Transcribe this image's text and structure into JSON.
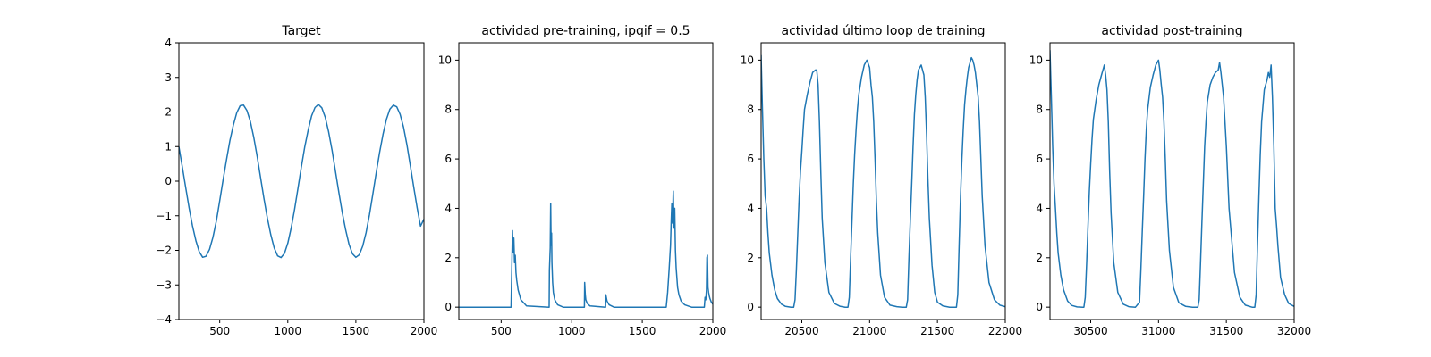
{
  "chart_data": [
    {
      "type": "line",
      "title": "Target",
      "xlabel": "",
      "ylabel": "",
      "xlim": [
        200,
        2000
      ],
      "ylim": [
        -4,
        4
      ],
      "xticks": [
        500,
        1000,
        1500,
        2000
      ],
      "yticks": [
        -4,
        -3,
        -2,
        -1,
        0,
        1,
        2,
        3,
        4
      ],
      "grid": false,
      "series": [
        {
          "color": "#1f77b4",
          "x": [
            200,
            225,
            250,
            275,
            300,
            325,
            350,
            375,
            400,
            425,
            450,
            475,
            500,
            525,
            550,
            575,
            600,
            625,
            650,
            675,
            700,
            725,
            750,
            775,
            800,
            825,
            850,
            875,
            900,
            925,
            950,
            975,
            1000,
            1025,
            1050,
            1075,
            1100,
            1125,
            1150,
            1175,
            1200,
            1225,
            1250,
            1275,
            1300,
            1325,
            1350,
            1375,
            1400,
            1425,
            1450,
            1475,
            1500,
            1525,
            1550,
            1575,
            1600,
            1625,
            1650,
            1675,
            1700,
            1725,
            1750,
            1775,
            1800,
            1825,
            1850,
            1875,
            1900,
            1925,
            1950,
            1975,
            2000
          ],
          "y": [
            1.0,
            0.42,
            -0.18,
            -0.77,
            -1.29,
            -1.72,
            -2.04,
            -2.2,
            -2.17,
            -1.97,
            -1.62,
            -1.15,
            -0.56,
            0.05,
            0.63,
            1.18,
            1.62,
            1.98,
            2.18,
            2.2,
            2.04,
            1.73,
            1.27,
            0.72,
            0.11,
            -0.5,
            -1.06,
            -1.55,
            -1.93,
            -2.16,
            -2.21,
            -2.09,
            -1.79,
            -1.35,
            -0.81,
            -0.2,
            0.42,
            1.0,
            1.48,
            1.89,
            2.13,
            2.22,
            2.12,
            1.85,
            1.43,
            0.89,
            0.28,
            -0.33,
            -0.91,
            -1.41,
            -1.83,
            -2.1,
            -2.2,
            -2.13,
            -1.88,
            -1.49,
            -0.97,
            -0.37,
            0.25,
            0.84,
            1.36,
            1.79,
            2.08,
            2.2,
            2.15,
            1.93,
            1.56,
            1.05,
            0.45,
            -0.17,
            -0.77,
            -1.3,
            -1.1
          ]
        }
      ]
    },
    {
      "type": "line",
      "title": "actividad pre-training, ipqif = 0.5",
      "xlabel": "",
      "ylabel": "",
      "xlim": [
        200,
        2000
      ],
      "ylim": [
        -0.5,
        10.7
      ],
      "xticks": [
        500,
        1000,
        1500,
        2000
      ],
      "yticks": [
        0,
        2,
        4,
        6,
        8,
        10
      ],
      "grid": false,
      "series": [
        {
          "color": "#1f77b4",
          "x": [
            200,
            570,
            575,
            580,
            585,
            590,
            595,
            600,
            605,
            610,
            620,
            640,
            680,
            840,
            842,
            845,
            848,
            851,
            854,
            857,
            860,
            865,
            870,
            880,
            900,
            940,
            1090,
            1092,
            1096,
            1100,
            1110,
            1130,
            1240,
            1242,
            1250,
            1265,
            1300,
            1670,
            1680,
            1690,
            1700,
            1705,
            1710,
            1715,
            1720,
            1725,
            1730,
            1735,
            1740,
            1745,
            1750,
            1760,
            1775,
            1800,
            1850,
            1940,
            1945,
            1950,
            1955,
            1958,
            1962,
            1966,
            1970,
            1975,
            1980,
            1990,
            2000
          ],
          "y": [
            0,
            0,
            1.5,
            3.1,
            2.2,
            2.8,
            1.8,
            2.1,
            1.4,
            1.1,
            0.7,
            0.3,
            0.05,
            0,
            1.5,
            2.0,
            2.4,
            4.2,
            2.5,
            3.0,
            1.8,
            1.0,
            0.6,
            0.3,
            0.1,
            0,
            0,
            1.0,
            0.5,
            0.3,
            0.15,
            0.05,
            0,
            0.5,
            0.25,
            0.1,
            0,
            0,
            0.6,
            1.5,
            2.5,
            3.5,
            4.2,
            3.4,
            4.7,
            3.2,
            4.0,
            2.3,
            1.6,
            1.2,
            0.8,
            0.5,
            0.25,
            0.1,
            0,
            0,
            0.4,
            0.3,
            0.7,
            2.0,
            2.1,
            0.8,
            0.6,
            0.45,
            0.35,
            0.2,
            0.12
          ]
        }
      ]
    },
    {
      "type": "line",
      "title": "actividad último loop de training",
      "xlabel": "",
      "ylabel": "",
      "xlim": [
        20200,
        22000
      ],
      "ylim": [
        -0.5,
        10.7
      ],
      "xticks": [
        20500,
        21000,
        21500,
        22000
      ],
      "yticks": [
        0,
        2,
        4,
        6,
        8,
        10
      ],
      "grid": false,
      "series": [
        {
          "color": "#1f77b4",
          "x": [
            20200,
            20210,
            20220,
            20230,
            20240,
            20250,
            20260,
            20280,
            20300,
            20320,
            20350,
            20380,
            20420,
            20440,
            20450,
            20460,
            20470,
            20480,
            20490,
            20500,
            20510,
            20520,
            20540,
            20560,
            20580,
            20600,
            20610,
            20620,
            20630,
            20640,
            20650,
            20670,
            20700,
            20740,
            20780,
            20820,
            20840,
            20850,
            20860,
            20870,
            20880,
            20890,
            20900,
            20910,
            20920,
            20940,
            20960,
            20980,
            21000,
            21010,
            21020,
            21030,
            21040,
            21050,
            21060,
            21080,
            21110,
            21150,
            21200,
            21240,
            21270,
            21280,
            21290,
            21300,
            21310,
            21320,
            21330,
            21340,
            21350,
            21360,
            21380,
            21400,
            21410,
            21420,
            21430,
            21440,
            21460,
            21480,
            21500,
            21540,
            21590,
            21620,
            21640,
            21650,
            21660,
            21670,
            21680,
            21690,
            21700,
            21710,
            21720,
            21730,
            21740,
            21750,
            21760,
            21770,
            21780,
            21800,
            21810,
            21820,
            21830,
            21850,
            21880,
            21920,
            21960,
            22000
          ],
          "y": [
            10.2,
            8.0,
            6.0,
            4.5,
            4.0,
            3.0,
            2.2,
            1.3,
            0.7,
            0.35,
            0.12,
            0.03,
            0,
            0,
            0.3,
            1.5,
            3.0,
            4.4,
            5.5,
            6.3,
            7.2,
            8.0,
            8.6,
            9.1,
            9.5,
            9.6,
            9.6,
            9.0,
            7.5,
            5.5,
            3.6,
            1.8,
            0.6,
            0.15,
            0.04,
            0,
            0,
            0.4,
            2.0,
            3.5,
            5.0,
            6.2,
            7.2,
            8.0,
            8.6,
            9.3,
            9.8,
            10.0,
            9.7,
            9.0,
            8.5,
            7.5,
            6.0,
            4.3,
            3.0,
            1.3,
            0.4,
            0.08,
            0.02,
            0,
            0,
            0.3,
            2.0,
            3.5,
            5.0,
            6.5,
            7.8,
            8.6,
            9.2,
            9.6,
            9.8,
            9.4,
            8.5,
            7.0,
            5.2,
            3.6,
            1.7,
            0.6,
            0.2,
            0.05,
            0,
            0,
            0,
            0.5,
            2.5,
            4.5,
            6.0,
            7.2,
            8.2,
            8.8,
            9.3,
            9.7,
            9.9,
            10.1,
            10.0,
            9.8,
            9.5,
            8.5,
            7.5,
            6.0,
            4.5,
            2.5,
            1.0,
            0.3,
            0.08,
            0.02
          ]
        }
      ]
    },
    {
      "type": "line",
      "title": "actividad post-training",
      "xlabel": "",
      "ylabel": "",
      "xlim": [
        30200,
        32000
      ],
      "ylim": [
        -0.5,
        10.7
      ],
      "xticks": [
        30500,
        31000,
        31500,
        32000
      ],
      "yticks": [
        0,
        2,
        4,
        6,
        8,
        10
      ],
      "grid": false,
      "series": [
        {
          "color": "#1f77b4",
          "x": [
            30200,
            30210,
            30220,
            30230,
            30240,
            30250,
            30260,
            30280,
            30300,
            30330,
            30360,
            30400,
            30440,
            30450,
            30460,
            30470,
            30480,
            30490,
            30500,
            30510,
            30520,
            30540,
            30560,
            30580,
            30600,
            30610,
            30620,
            30630,
            30640,
            30650,
            30670,
            30700,
            30740,
            30780,
            30830,
            30860,
            30870,
            30880,
            30890,
            30900,
            30910,
            30920,
            30940,
            30960,
            30980,
            31000,
            31010,
            31020,
            31030,
            31040,
            31050,
            31060,
            31080,
            31110,
            31150,
            31200,
            31250,
            31290,
            31300,
            31310,
            31320,
            31330,
            31340,
            31350,
            31360,
            31380,
            31400,
            31420,
            31440,
            31450,
            31460,
            31470,
            31480,
            31500,
            31520,
            31560,
            31600,
            31640,
            31690,
            31710,
            31720,
            31730,
            31740,
            31750,
            31760,
            31780,
            31800,
            31810,
            31820,
            31830,
            31840,
            31850,
            31860,
            31870,
            31880,
            31900,
            31930,
            31960,
            32000
          ],
          "y": [
            10.4,
            8.5,
            6.5,
            5.0,
            4.0,
            3.0,
            2.2,
            1.3,
            0.7,
            0.25,
            0.07,
            0.01,
            0,
            0,
            0.4,
            1.8,
            3.3,
            4.7,
            5.8,
            6.8,
            7.6,
            8.4,
            9.0,
            9.4,
            9.8,
            9.4,
            8.8,
            7.5,
            5.5,
            3.8,
            1.8,
            0.6,
            0.12,
            0.02,
            0,
            0.2,
            1.5,
            3.0,
            4.5,
            6.0,
            7.2,
            8.0,
            8.9,
            9.4,
            9.8,
            10.0,
            9.6,
            9.0,
            8.5,
            7.5,
            6.0,
            4.3,
            2.3,
            0.8,
            0.18,
            0.03,
            0,
            0,
            0.3,
            1.8,
            3.5,
            5.0,
            6.5,
            7.5,
            8.3,
            9.0,
            9.3,
            9.5,
            9.6,
            9.9,
            9.5,
            9.0,
            8.5,
            6.5,
            4.0,
            1.4,
            0.4,
            0.08,
            0,
            0,
            0.5,
            2.5,
            4.5,
            6.2,
            7.5,
            8.8,
            9.2,
            9.5,
            9.3,
            9.8,
            8.5,
            6.5,
            4.0,
            3.3,
            2.5,
            1.2,
            0.5,
            0.15,
            0.03
          ]
        }
      ]
    }
  ]
}
